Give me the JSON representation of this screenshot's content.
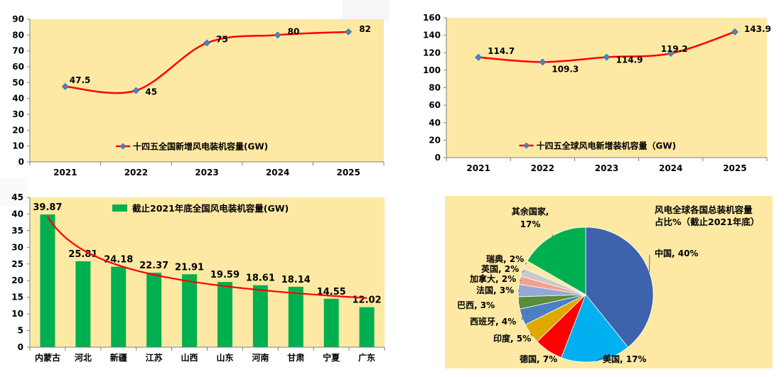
{
  "colors": {
    "plot_bg": "#fde9a4",
    "line": "#ff0000",
    "marker": "#4f81bd",
    "bar": "#00b050",
    "axis": "#7f7f7f",
    "text": "#000000"
  },
  "chart_data": [
    {
      "type": "line",
      "title": "",
      "categories": [
        "2021",
        "2022",
        "2023",
        "2024",
        "2025"
      ],
      "series": [
        {
          "name": "十四五全国新增风电装机容量(GW)",
          "values": [
            47.5,
            45,
            75,
            80,
            82
          ]
        }
      ],
      "data_labels": [
        "47.5",
        "45",
        "75",
        "80",
        "82"
      ],
      "ylim": [
        0,
        90
      ],
      "yticks": [
        "0",
        "10",
        "20",
        "30",
        "40",
        "50",
        "60",
        "70",
        "80",
        "90"
      ],
      "legend": "十四五全国新增风电装机容量(GW)",
      "legend_position": "bottom-center"
    },
    {
      "type": "line",
      "title": "",
      "categories": [
        "2021",
        "2022",
        "2023",
        "2024",
        "2025"
      ],
      "series": [
        {
          "name": "十四五全球风电新增装机容量（GW)",
          "values": [
            114.7,
            109.3,
            114.9,
            119.2,
            143.9
          ]
        }
      ],
      "data_labels": [
        "114.7",
        "109.3",
        "114.9",
        "119.2",
        "143.9"
      ],
      "ylim": [
        0,
        160
      ],
      "yticks": [
        "0",
        "20",
        "40",
        "60",
        "80",
        "100",
        "120",
        "140",
        "160"
      ],
      "legend": "十四五全球风电新增装机容量（GW)",
      "legend_position": "bottom-center"
    },
    {
      "type": "bar",
      "title": "",
      "categories": [
        "内蒙古",
        "河北",
        "新疆",
        "江苏",
        "山西",
        "山东",
        "河南",
        "甘肃",
        "宁夏",
        "广东"
      ],
      "series": [
        {
          "name": "截止2021年底全国风电装机容量(GW)",
          "values": [
            39.87,
            25.81,
            24.18,
            22.37,
            21.91,
            19.59,
            18.61,
            18.14,
            14.55,
            12.02
          ]
        }
      ],
      "data_labels": [
        "39.87",
        "25.81",
        "24.18",
        "22.37",
        "21.91",
        "19.59",
        "18.61",
        "18.14",
        "14.55",
        "12.02"
      ],
      "trendline": "power",
      "ylim": [
        0,
        45
      ],
      "yticks": [
        "0",
        "5",
        "10",
        "15",
        "20",
        "25",
        "30",
        "35",
        "40",
        "45"
      ],
      "legend": "截止2021年底全国风电装机容量(GW)",
      "legend_position": "top-center"
    },
    {
      "type": "pie",
      "title": "风电全球各国总装机容量占比%（截止2021年底）",
      "title_lines": [
        "风电全球各国总装机容量",
        "占比%（截止2021年底）"
      ],
      "slices": [
        {
          "name": "中国",
          "value": 40,
          "label": "中国, 40%",
          "color": "#3d63ad"
        },
        {
          "name": "美国",
          "value": 17,
          "label": "美国, 17%",
          "color": "#00b0f0"
        },
        {
          "name": "德国",
          "value": 7,
          "label": "德国, 7%",
          "color": "#ff0000"
        },
        {
          "name": "印度",
          "value": 5,
          "label": "印度, 5%",
          "color": "#e0a800"
        },
        {
          "name": "西班牙",
          "value": 4,
          "label": "西班牙, 4%",
          "color": "#4a7fc1"
        },
        {
          "name": "巴西",
          "value": 3,
          "label": "巴西, 3%",
          "color": "#5b8c3a"
        },
        {
          "name": "法国",
          "value": 3,
          "label": "法国, 3%",
          "color": "#95a9d6"
        },
        {
          "name": "加拿大",
          "value": 2,
          "label": "加拿大, 2%",
          "color": "#f1a18e"
        },
        {
          "name": "英国",
          "value": 2,
          "label": "英国, 2%",
          "color": "#c9c9c9"
        },
        {
          "name": "瑞典",
          "value": 2,
          "label": "瑞典, 2%",
          "color": "#fde9a4"
        },
        {
          "name": "其余国家",
          "value": 17,
          "label_lines": [
            "其余国家,",
            "17%"
          ],
          "color": "#00b050"
        }
      ]
    }
  ]
}
